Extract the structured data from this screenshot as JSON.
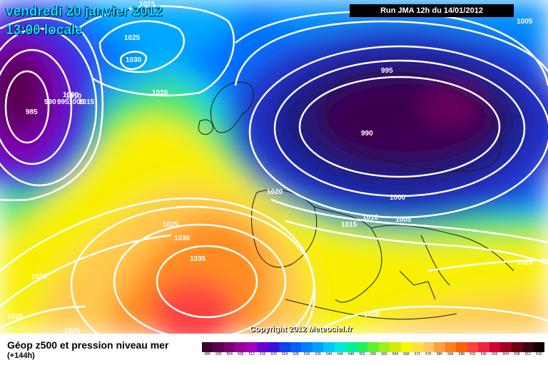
{
  "title": {
    "date": "vendredi 20 janvier 2012",
    "time": "13:00 locale"
  },
  "run_info": "Run JMA 12h du 14/01/2012",
  "copyright": "Copyright 2012 Meteociel.fr",
  "legend": {
    "title": "Géop z500 et pression niveau mer",
    "subtitle": "(+144h)",
    "scale_values": [
      "496",
      "500",
      "504",
      "508",
      "512",
      "516",
      "520",
      "524",
      "528",
      "532",
      "536",
      "540",
      "544",
      "548",
      "552",
      "556",
      "560",
      "564",
      "568",
      "572",
      "576",
      "580",
      "584",
      "588",
      "592",
      "596",
      "600",
      "604",
      "608",
      "612",
      "616"
    ],
    "scale_colors": [
      "#3a0030",
      "#5a0050",
      "#7a0070",
      "#96009a",
      "#a000c0",
      "#6a00d0",
      "#3a10e0",
      "#1040f0",
      "#0060ff",
      "#0080ff",
      "#00a0ff",
      "#00c8ff",
      "#00e8e0",
      "#00f0a0",
      "#20f060",
      "#60f030",
      "#a0f020",
      "#d0f000",
      "#f8f800",
      "#ffe040",
      "#ffc860",
      "#ffa040",
      "#ff8020",
      "#ff6000",
      "#ff4040",
      "#f02040",
      "#d00030",
      "#a00020",
      "#700010",
      "#400010",
      "#100000"
    ]
  },
  "isobar_labels": [
    {
      "text": "1015"
    },
    {
      "text": "1025"
    },
    {
      "text": "1030"
    },
    {
      "text": "1020"
    },
    {
      "text": "990"
    },
    {
      "text": "995"
    },
    {
      "text": "1000"
    },
    {
      "text": "1005"
    },
    {
      "text": "1010"
    },
    {
      "text": "1015"
    },
    {
      "text": "985"
    },
    {
      "text": "995"
    },
    {
      "text": "990"
    },
    {
      "text": "1020"
    },
    {
      "text": "1015"
    },
    {
      "text": "1010"
    },
    {
      "text": "1005"
    },
    {
      "text": "1000"
    },
    {
      "text": "1025"
    },
    {
      "text": "1030"
    },
    {
      "text": "1035"
    },
    {
      "text": "1030"
    },
    {
      "text": "1025"
    },
    {
      "text": "1025"
    },
    {
      "text": "1020"
    },
    {
      "text": "1025"
    },
    {
      "text": "1005"
    }
  ]
}
